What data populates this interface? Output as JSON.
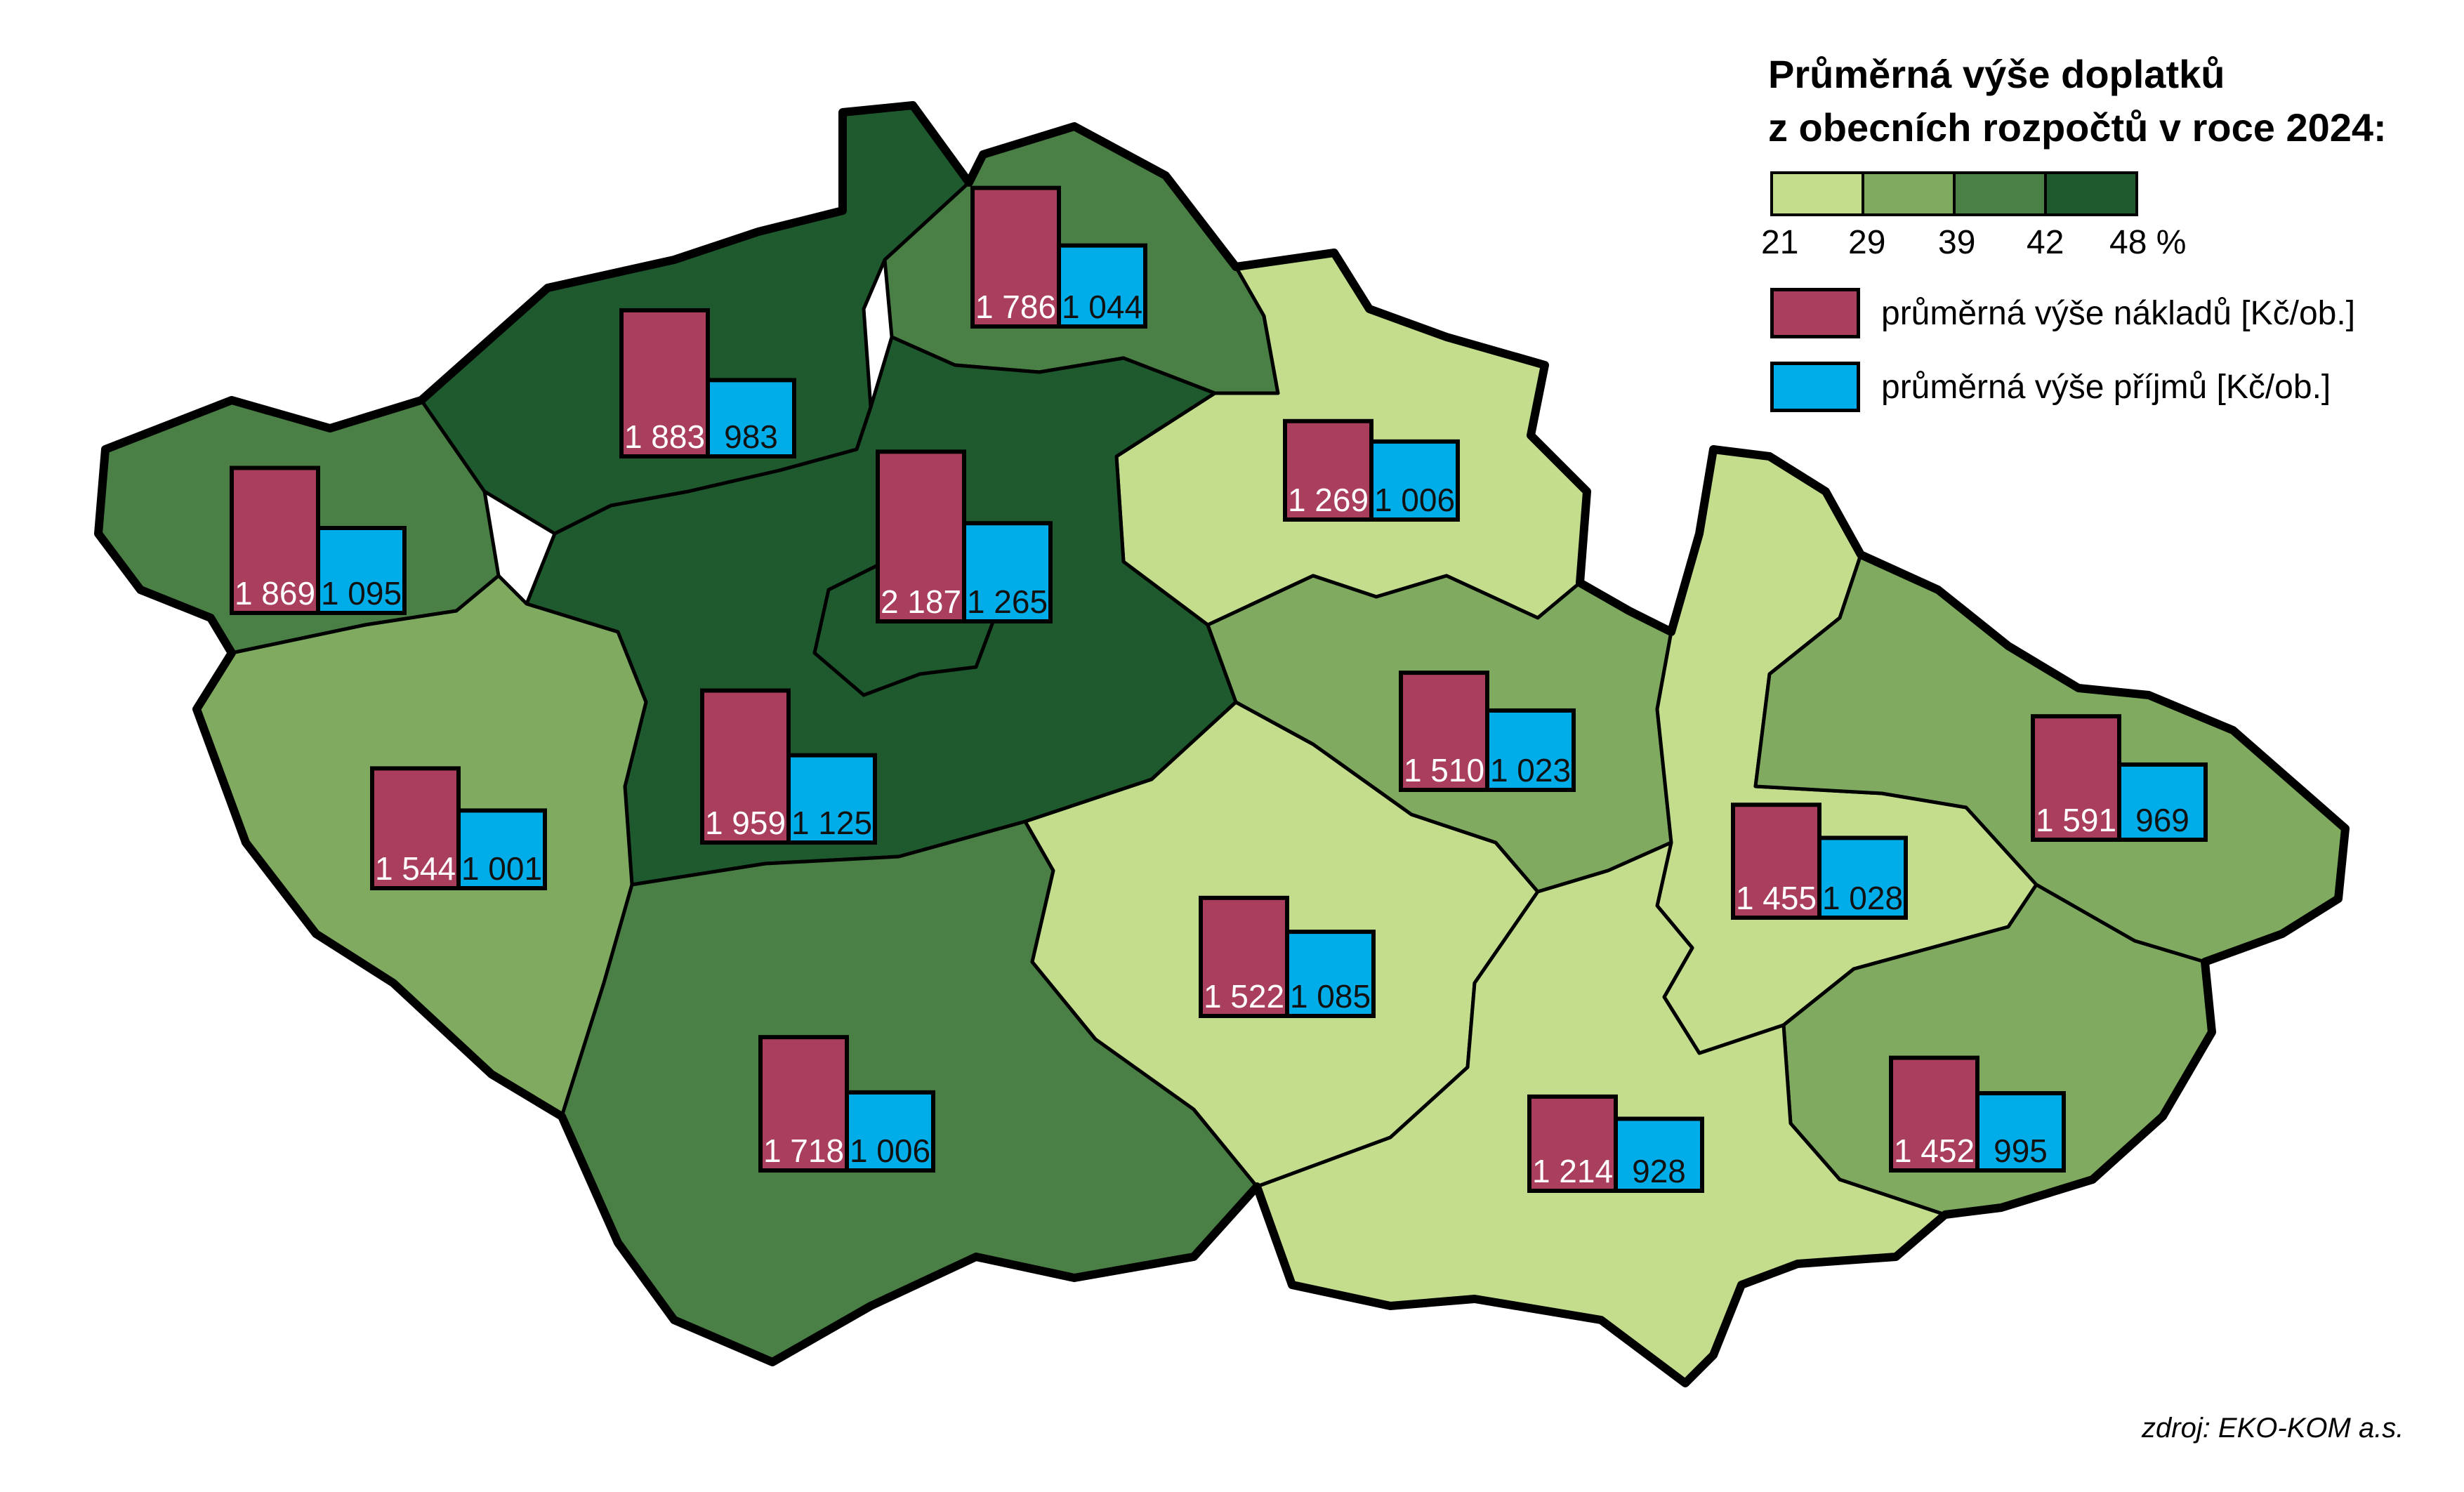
{
  "legend": {
    "title_line1": "Průměrná výše doplatků",
    "title_line2": "z obecních rozpočtů v roce 2024:",
    "scale_colors": [
      "#c3dd8d",
      "#7faa60",
      "#4a7f45",
      "#1e5a2e"
    ],
    "scale_ticks": [
      "21",
      "29",
      "39",
      "42",
      "48 %"
    ],
    "costs_label": "průměrná výše nákladů [Kč/ob.]",
    "revenues_label": "průměrná výše příjmů [Kč/ob.]",
    "costs_color": "#a93f5d",
    "revenues_color": "#00ade8"
  },
  "source": "zdroj: EKO-KOM a.s.",
  "regions": [
    {
      "costs": 1869,
      "revenues": 1095,
      "costs_label": "1 869",
      "revenues_label": "1 095",
      "class": 3
    },
    {
      "costs": 1883,
      "revenues": 983,
      "costs_label": "1 883",
      "revenues_label": "983",
      "class": 4
    },
    {
      "costs": 1786,
      "revenues": 1044,
      "costs_label": "1 786",
      "revenues_label": "1 044",
      "class": 3
    },
    {
      "costs": 2187,
      "revenues": 1265,
      "costs_label": "2 187",
      "revenues_label": "1 265",
      "class": 4
    },
    {
      "costs": 1269,
      "revenues": 1006,
      "costs_label": "1 269",
      "revenues_label": "1 006",
      "class": 1
    },
    {
      "costs": 1544,
      "revenues": 1001,
      "costs_label": "1 544",
      "revenues_label": "1 001",
      "class": 2
    },
    {
      "costs": 1959,
      "revenues": 1125,
      "costs_label": "1 959",
      "revenues_label": "1 125",
      "class": 4
    },
    {
      "costs": 1510,
      "revenues": 1023,
      "costs_label": "1 510",
      "revenues_label": "1 023",
      "class": 2
    },
    {
      "costs": 1591,
      "revenues": 969,
      "costs_label": "1 591",
      "revenues_label": "969",
      "class": 2
    },
    {
      "costs": 1455,
      "revenues": 1028,
      "costs_label": "1 455",
      "revenues_label": "1 028",
      "class": 1
    },
    {
      "costs": 1522,
      "revenues": 1085,
      "costs_label": "1 522",
      "revenues_label": "1 085",
      "class": 1
    },
    {
      "costs": 1718,
      "revenues": 1006,
      "costs_label": "1 718",
      "revenues_label": "1 006",
      "class": 3
    },
    {
      "costs": 1214,
      "revenues": 928,
      "costs_label": "1 214",
      "revenues_label": "928",
      "class": 1
    },
    {
      "costs": 1452,
      "revenues": 995,
      "costs_label": "1 452",
      "revenues_label": "995",
      "class": 2
    }
  ]
}
